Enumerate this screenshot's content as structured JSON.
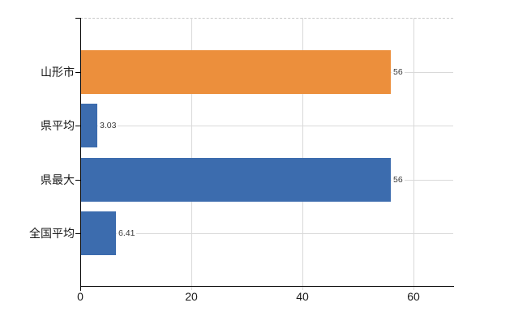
{
  "page": {
    "background_color": "#ffffff"
  },
  "chart_data": {
    "type": "bar",
    "orientation": "horizontal",
    "title": "",
    "categories": [
      "山形市",
      "県平均",
      "県最大",
      "全国平均"
    ],
    "values": [
      56,
      3.03,
      56,
      6.41
    ],
    "value_labels": [
      "56",
      "3.03",
      "56",
      "6.41"
    ],
    "bar_colors": [
      "#EC8F3C",
      "#3C6CAE",
      "#3C6CAE",
      "#3C6CAE"
    ],
    "x_ticks": [
      {
        "value": 0,
        "label": "0"
      },
      {
        "value": 20,
        "label": "20"
      },
      {
        "value": 40,
        "label": "40"
      },
      {
        "value": 60,
        "label": "60"
      }
    ],
    "xlim": [
      0,
      67.2
    ],
    "grid": true,
    "legend_position": "none",
    "styles": {
      "grid_color": "#d9d9d9",
      "top_border_color": "#c9c9c9",
      "axis_color": "#000000",
      "value_label_color": "#3a3a3a",
      "category_label_color": "#1a1a1a",
      "tick_label_color": "#1a1a1a"
    }
  }
}
